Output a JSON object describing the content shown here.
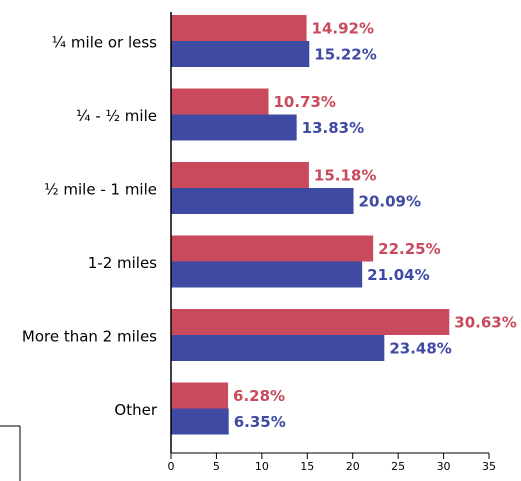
{
  "chart_data": {
    "type": "bar",
    "orientation": "horizontal",
    "categories": [
      "¼ mile or less",
      "¼ - ½ mile",
      "½ mile - 1 mile",
      "1-2 miles",
      "More than 2 miles",
      "Other"
    ],
    "series": [
      {
        "values": [
          14.92,
          10.73,
          15.18,
          22.25,
          30.63,
          6.28
        ],
        "labels": [
          "14.92%",
          "10.73%",
          "15.18%",
          "22.25%",
          "30.63%",
          "6.28%"
        ],
        "color": "#c94a5c"
      },
      {
        "values": [
          15.22,
          13.83,
          20.09,
          21.04,
          23.48,
          6.35
        ],
        "labels": [
          "15.22%",
          "13.83%",
          "20.09%",
          "21.04%",
          "23.48%",
          "6.35%"
        ],
        "color": "#3f4aa3"
      }
    ],
    "xticks": [
      "0",
      "5",
      "10",
      "15",
      "20",
      "25",
      "30",
      "35"
    ],
    "xlim": [
      0,
      35
    ],
    "grid": false,
    "title": "",
    "xlabel": "",
    "ylabel": ""
  }
}
